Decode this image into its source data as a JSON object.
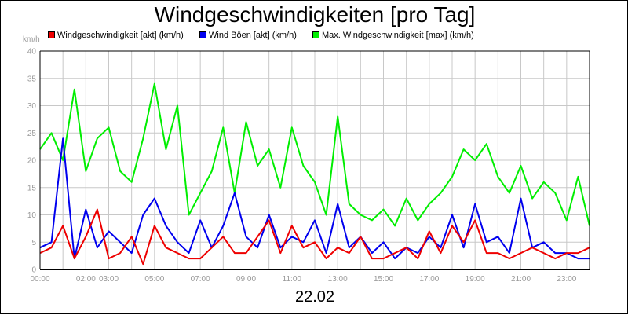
{
  "chart_data": {
    "type": "line",
    "title": "Windgeschwindigkeiten [pro Tag]",
    "unit": "km/h",
    "date": "22.02",
    "ylim": [
      0,
      40
    ],
    "yticks": [
      "0",
      "5",
      "10",
      "15",
      "20",
      "25",
      "30",
      "35",
      "40"
    ],
    "xlim_hours": [
      0,
      24
    ],
    "xticks": [
      "00:00",
      "02:00",
      "03:00",
      "05:00",
      "07:00",
      "09:00",
      "11:00",
      "13:00",
      "15:00",
      "17:00",
      "19:00",
      "21:00",
      "23:00"
    ],
    "xtick_hours": [
      0,
      2,
      3,
      5,
      7,
      9,
      11,
      13,
      15,
      17,
      19,
      21,
      23
    ],
    "grid": true,
    "legend": "top",
    "series": [
      {
        "name": "Windgeschwindigkeit [akt] (km/h)",
        "color": "#ee0000",
        "x": [
          0,
          0.5,
          1,
          1.5,
          2,
          2.5,
          3,
          3.5,
          4,
          4.5,
          5,
          5.5,
          6,
          6.5,
          7,
          7.5,
          8,
          8.5,
          9,
          9.5,
          10,
          10.5,
          11,
          11.5,
          12,
          12.5,
          13,
          13.5,
          14,
          14.5,
          15,
          15.5,
          16,
          16.5,
          17,
          17.5,
          18,
          18.5,
          19,
          19.5,
          20,
          20.5,
          21,
          21.5,
          22,
          22.5,
          23,
          23.5,
          24
        ],
        "values": [
          3,
          4,
          8,
          2,
          6,
          11,
          2,
          3,
          6,
          1,
          8,
          4,
          3,
          2,
          2,
          4,
          6,
          3,
          3,
          6,
          9,
          3,
          8,
          4,
          5,
          2,
          4,
          3,
          6,
          2,
          2,
          3,
          4,
          2,
          7,
          3,
          8,
          5,
          9,
          3,
          3,
          2,
          3,
          4,
          3,
          2,
          3,
          3,
          4
        ]
      },
      {
        "name": "Wind Böen [akt] (km/h)",
        "color": "#0000ee",
        "x": [
          0,
          0.5,
          1,
          1.5,
          2,
          2.5,
          3,
          3.5,
          4,
          4.5,
          5,
          5.5,
          6,
          6.5,
          7,
          7.5,
          8,
          8.5,
          9,
          9.5,
          10,
          10.5,
          11,
          11.5,
          12,
          12.5,
          13,
          13.5,
          14,
          14.5,
          15,
          15.5,
          16,
          16.5,
          17,
          17.5,
          18,
          18.5,
          19,
          19.5,
          20,
          20.5,
          21,
          21.5,
          22,
          22.5,
          23,
          23.5,
          24
        ],
        "values": [
          4,
          5,
          24,
          2,
          11,
          4,
          7,
          5,
          3,
          10,
          13,
          8,
          5,
          3,
          9,
          4,
          8,
          14,
          6,
          4,
          10,
          4,
          6,
          5,
          9,
          3,
          12,
          4,
          6,
          3,
          5,
          2,
          4,
          3,
          6,
          4,
          10,
          4,
          12,
          5,
          6,
          3,
          13,
          4,
          5,
          3,
          3,
          2,
          2
        ]
      },
      {
        "name": "Max. Windgeschwindigkeit [max] (km/h)",
        "color": "#00ee00",
        "x": [
          0,
          0.5,
          1,
          1.5,
          2,
          2.5,
          3,
          3.5,
          4,
          4.5,
          5,
          5.5,
          6,
          6.5,
          7,
          7.5,
          8,
          8.5,
          9,
          9.5,
          10,
          10.5,
          11,
          11.5,
          12,
          12.5,
          13,
          13.5,
          14,
          14.5,
          15,
          15.5,
          16,
          16.5,
          17,
          17.5,
          18,
          18.5,
          19,
          19.5,
          20,
          20.5,
          21,
          21.5,
          22,
          22.5,
          23,
          23.5,
          24
        ],
        "values": [
          22,
          25,
          20,
          33,
          18,
          24,
          26,
          18,
          16,
          24,
          34,
          22,
          30,
          10,
          14,
          18,
          26,
          14,
          27,
          19,
          22,
          15,
          26,
          19,
          16,
          10,
          28,
          12,
          10,
          9,
          11,
          8,
          13,
          9,
          12,
          14,
          17,
          22,
          20,
          23,
          17,
          14,
          19,
          13,
          16,
          14,
          9,
          17,
          8
        ]
      }
    ]
  }
}
